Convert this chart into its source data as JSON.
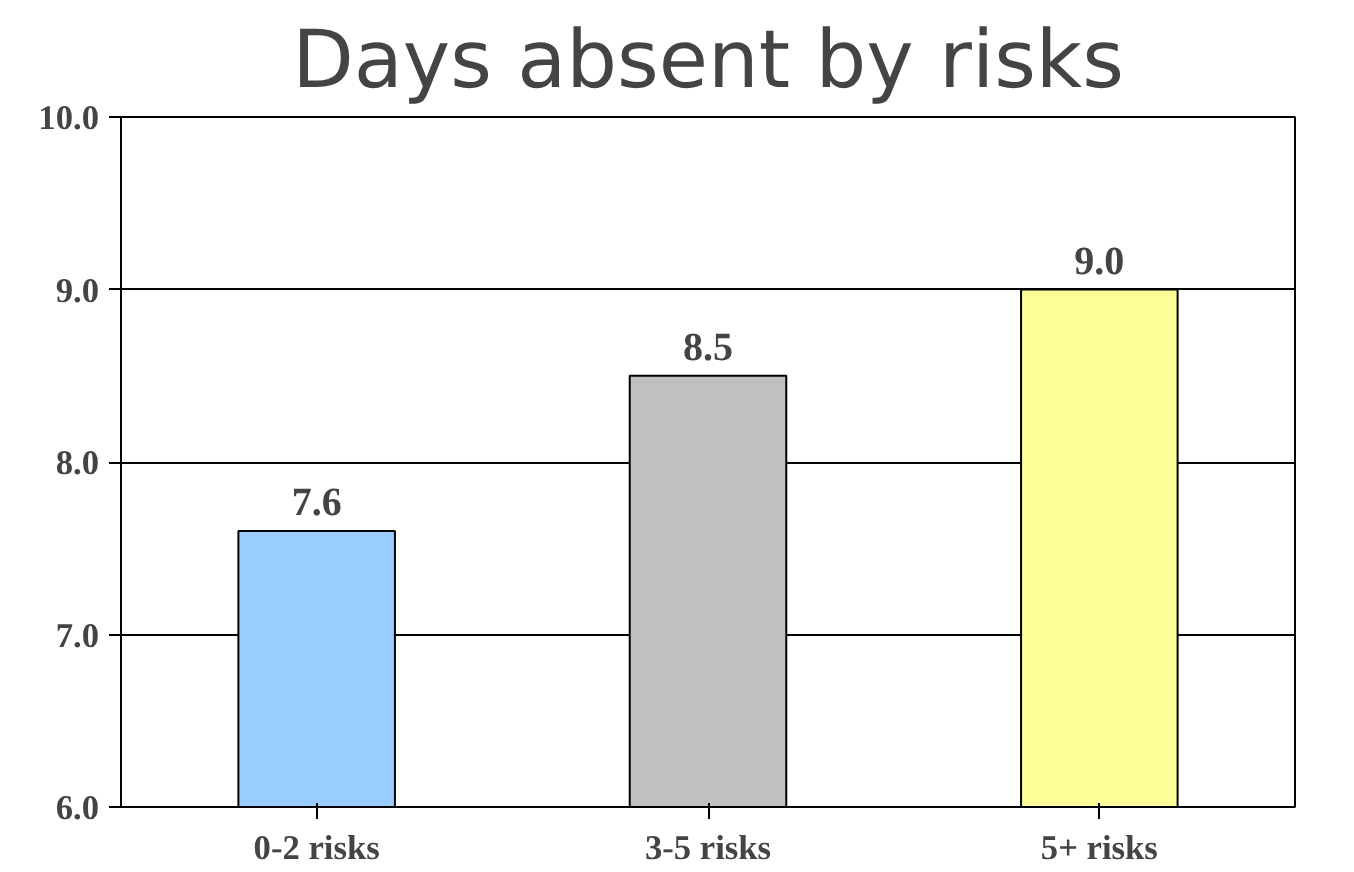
{
  "chart_data": {
    "type": "bar",
    "title": "Days absent by risks",
    "categories": [
      "0-2 risks",
      "3-5 risks",
      "5+ risks"
    ],
    "values": [
      7.6,
      8.5,
      9.0
    ],
    "value_labels": [
      "7.6",
      "8.5",
      "9.0"
    ],
    "colors": [
      "#99ccff",
      "#c0c0c0",
      "#ffff99"
    ],
    "ylim": [
      6,
      10
    ],
    "yticks": [
      {
        "value": 6,
        "label": "6.0"
      },
      {
        "value": 7,
        "label": "7.0"
      },
      {
        "value": 8,
        "label": "8.0"
      },
      {
        "value": 9,
        "label": "9.0"
      },
      {
        "value": 10,
        "label": "10.0"
      }
    ],
    "grid": "y"
  }
}
